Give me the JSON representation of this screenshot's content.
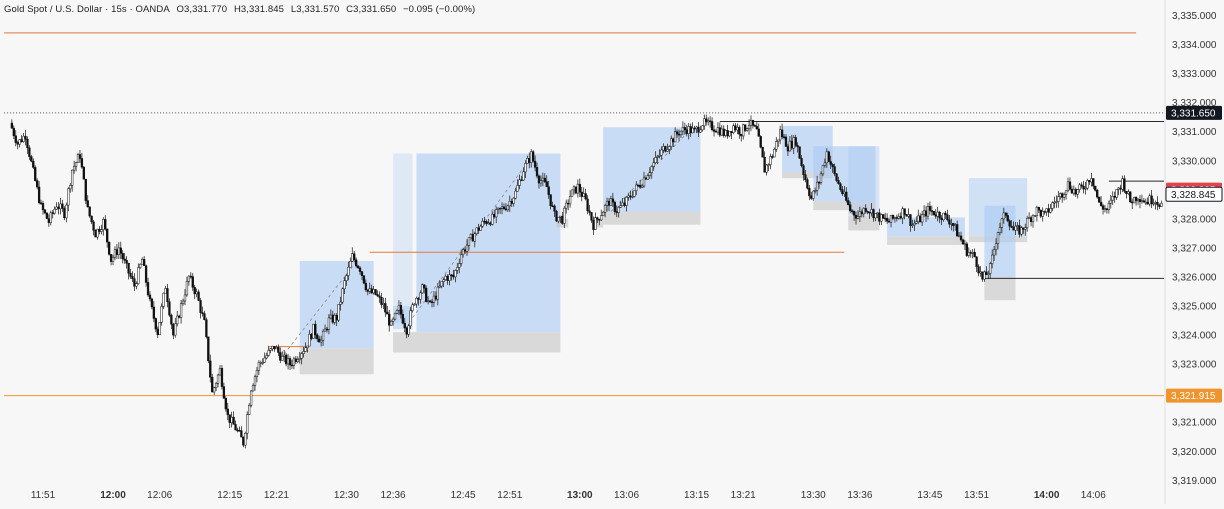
{
  "header": {
    "symbol": "Gold Spot / U.S. Dollar · 15s · OANDA",
    "open": "O3,331.770",
    "high": "H3,331.845",
    "low": "L3,331.570",
    "close": "C3,331.650",
    "change": "−0.095 (−0.00%)"
  },
  "chart_data": {
    "type": "candlestick",
    "title": "Gold Spot / U.S. Dollar · 15s · OANDA",
    "ylim": [
      3318.7,
      3335.3
    ],
    "grid": false,
    "y_ticks": [
      "3,335.000",
      "3,334.000",
      "3,333.000",
      "3,332.000",
      "3,331.000",
      "3,330.000",
      "3,329.000",
      "3,328.000",
      "3,327.000",
      "3,326.000",
      "3,325.000",
      "3,324.000",
      "3,323.000",
      "3,322.000",
      "3,321.000",
      "3,320.000",
      "3,319.000"
    ],
    "y_tick_values": [
      3335,
      3334,
      3333,
      3332,
      3331,
      3330,
      3329,
      3328,
      3327,
      3326,
      3325,
      3324,
      3323,
      3322,
      3321,
      3320,
      3319
    ],
    "x_ticks": [
      {
        "label": "11:51",
        "t": 0,
        "bold": false
      },
      {
        "label": "12:00",
        "t": 9,
        "bold": true
      },
      {
        "label": "12:06",
        "t": 15,
        "bold": false
      },
      {
        "label": "12:15",
        "t": 24,
        "bold": false
      },
      {
        "label": "12:21",
        "t": 30,
        "bold": false
      },
      {
        "label": "12:30",
        "t": 39,
        "bold": false
      },
      {
        "label": "12:36",
        "t": 45,
        "bold": false
      },
      {
        "label": "12:45",
        "t": 54,
        "bold": false
      },
      {
        "label": "12:51",
        "t": 60,
        "bold": false
      },
      {
        "label": "13:00",
        "t": 69,
        "bold": true
      },
      {
        "label": "13:06",
        "t": 75,
        "bold": false
      },
      {
        "label": "13:15",
        "t": 84,
        "bold": false
      },
      {
        "label": "13:21",
        "t": 90,
        "bold": false
      },
      {
        "label": "13:30",
        "t": 99,
        "bold": false
      },
      {
        "label": "13:36",
        "t": 105,
        "bold": false
      },
      {
        "label": "13:45",
        "t": 114,
        "bold": false
      },
      {
        "label": "13:51",
        "t": 120,
        "bold": false
      },
      {
        "label": "14:00",
        "t": 129,
        "bold": true
      },
      {
        "label": "14:06",
        "t": 135,
        "bold": false
      }
    ],
    "price_path": [
      [
        -4,
        3331.3
      ],
      [
        -3,
        3330.6
      ],
      [
        -2,
        3330.9
      ],
      [
        -1,
        3329.6
      ],
      [
        0,
        3328.4
      ],
      [
        1,
        3327.9
      ],
      [
        2,
        3328.5
      ],
      [
        3,
        3328.2
      ],
      [
        4,
        3329.7
      ],
      [
        5,
        3330.2
      ],
      [
        6,
        3328.3
      ],
      [
        7,
        3327.5
      ],
      [
        8,
        3327.9
      ],
      [
        9,
        3326.6
      ],
      [
        10,
        3327.0
      ],
      [
        11,
        3326.3
      ],
      [
        12,
        3325.7
      ],
      [
        13,
        3326.6
      ],
      [
        14,
        3325.1
      ],
      [
        15,
        3324.1
      ],
      [
        16,
        3325.7
      ],
      [
        17,
        3324.0
      ],
      [
        18,
        3325.0
      ],
      [
        19,
        3326.0
      ],
      [
        20,
        3325.4
      ],
      [
        21,
        3324.4
      ],
      [
        22,
        3322.0
      ],
      [
        23,
        3322.8
      ],
      [
        24,
        3321.2
      ],
      [
        25,
        3320.8
      ],
      [
        26,
        3320.3
      ],
      [
        27,
        3322.2
      ],
      [
        28,
        3323.0
      ],
      [
        29,
        3323.3
      ],
      [
        30,
        3323.6
      ],
      [
        31,
        3323.2
      ],
      [
        32,
        3323.0
      ],
      [
        33,
        3323.3
      ],
      [
        34,
        3323.6
      ],
      [
        35,
        3324.2
      ],
      [
        36,
        3323.8
      ],
      [
        37,
        3324.5
      ],
      [
        38,
        3324.6
      ],
      [
        39,
        3325.8
      ],
      [
        40,
        3326.7
      ],
      [
        41,
        3326.3
      ],
      [
        42,
        3325.5
      ],
      [
        43,
        3325.4
      ],
      [
        44,
        3325.0
      ],
      [
        45,
        3324.3
      ],
      [
        46,
        3324.9
      ],
      [
        47,
        3324.2
      ],
      [
        48,
        3325.2
      ],
      [
        49,
        3325.6
      ],
      [
        50,
        3325.0
      ],
      [
        51,
        3325.5
      ],
      [
        52,
        3326.0
      ],
      [
        53,
        3326.0
      ],
      [
        54,
        3326.8
      ],
      [
        55,
        3327.2
      ],
      [
        56,
        3327.6
      ],
      [
        57,
        3327.9
      ],
      [
        58,
        3328.0
      ],
      [
        59,
        3328.3
      ],
      [
        60,
        3328.5
      ],
      [
        61,
        3328.9
      ],
      [
        62,
        3329.7
      ],
      [
        63,
        3330.2
      ],
      [
        64,
        3329.4
      ],
      [
        65,
        3329.1
      ],
      [
        66,
        3328.1
      ],
      [
        67,
        3328.0
      ],
      [
        68,
        3328.8
      ],
      [
        69,
        3329.1
      ],
      [
        70,
        3328.6
      ],
      [
        71,
        3327.8
      ],
      [
        72,
        3328.2
      ],
      [
        73,
        3328.6
      ],
      [
        74,
        3328.3
      ],
      [
        75,
        3328.5
      ],
      [
        76,
        3328.9
      ],
      [
        77,
        3329.2
      ],
      [
        78,
        3329.6
      ],
      [
        79,
        3330.0
      ],
      [
        80,
        3330.4
      ],
      [
        81,
        3330.7
      ],
      [
        82,
        3331.0
      ],
      [
        83,
        3331.1
      ],
      [
        84,
        3331.0
      ],
      [
        85,
        3331.3
      ],
      [
        86,
        3331.2
      ],
      [
        87,
        3331.1
      ],
      [
        88,
        3330.9
      ],
      [
        89,
        3331.2
      ],
      [
        90,
        3331.0
      ],
      [
        91,
        3331.3
      ],
      [
        92,
        3331.0
      ],
      [
        93,
        3329.7
      ],
      [
        94,
        3330.2
      ],
      [
        95,
        3331.0
      ],
      [
        96,
        3330.5
      ],
      [
        97,
        3330.7
      ],
      [
        98,
        3329.6
      ],
      [
        99,
        3328.7
      ],
      [
        100,
        3329.3
      ],
      [
        101,
        3330.3
      ],
      [
        102,
        3329.5
      ],
      [
        103,
        3328.9
      ],
      [
        104,
        3328.3
      ],
      [
        105,
        3328.1
      ],
      [
        106,
        3328.4
      ],
      [
        107,
        3328.2
      ],
      [
        108,
        3328.0
      ],
      [
        109,
        3327.9
      ],
      [
        110,
        3328.1
      ],
      [
        111,
        3328.3
      ],
      [
        112,
        3327.8
      ],
      [
        113,
        3328.0
      ],
      [
        114,
        3328.3
      ],
      [
        115,
        3328.2
      ],
      [
        116,
        3328.1
      ],
      [
        117,
        3327.9
      ],
      [
        118,
        3327.4
      ],
      [
        119,
        3326.9
      ],
      [
        120,
        3326.7
      ],
      [
        121,
        3325.9
      ],
      [
        122,
        3326.3
      ],
      [
        123,
        3327.6
      ],
      [
        124,
        3328.2
      ],
      [
        125,
        3327.6
      ],
      [
        126,
        3327.6
      ],
      [
        127,
        3328.0
      ],
      [
        128,
        3328.3
      ],
      [
        129,
        3328.1
      ],
      [
        130,
        3328.5
      ],
      [
        131,
        3328.8
      ],
      [
        132,
        3329.2
      ],
      [
        133,
        3328.9
      ],
      [
        134,
        3329.1
      ],
      [
        135,
        3329.5
      ],
      [
        136,
        3328.5
      ],
      [
        137,
        3328.3
      ],
      [
        138,
        3328.8
      ],
      [
        139,
        3329.3
      ],
      [
        140,
        3328.6
      ],
      [
        141,
        3328.8
      ],
      [
        142,
        3328.6
      ],
      [
        143,
        3328.7
      ],
      [
        144,
        3328.5
      ]
    ],
    "horizontal_lines": [
      {
        "price": 3334.4,
        "t_start": -5,
        "t_end": 140.5,
        "color": "#e07b3c",
        "style": "solid"
      },
      {
        "price": 3331.65,
        "t_start": -5,
        "t_end": 145,
        "color": "#555555",
        "style": "dotted"
      },
      {
        "price": 3326.85,
        "t_start": 42,
        "t_end": 103,
        "color": "#e07b3c",
        "style": "solid"
      },
      {
        "price": 3323.6,
        "t_start": 29,
        "t_end": 34,
        "color": "#e07b3c",
        "style": "solid"
      },
      {
        "price": 3321.915,
        "t_start": -5,
        "t_end": 145,
        "color": "#f0952e",
        "style": "solid"
      },
      {
        "price": 3331.35,
        "t_start": 87,
        "t_end": 145,
        "color": "#2a2a2a",
        "style": "solid"
      },
      {
        "price": 3325.95,
        "t_start": 121,
        "t_end": 145,
        "color": "#2a2a2a",
        "style": "solid"
      },
      {
        "price": 3329.3,
        "t_start": 137,
        "t_end": 145,
        "color": "#2a2a2a",
        "style": "solid"
      }
    ],
    "zones": [
      {
        "t_start": 33,
        "t_end": 42.5,
        "top": 3326.55,
        "bottom": 3323.55,
        "color": "#aac9f3",
        "opacity": 0.6
      },
      {
        "t_start": 33,
        "t_end": 42.5,
        "top": 3323.55,
        "bottom": 3322.65,
        "color": "#c4c4c4",
        "opacity": 0.6
      },
      {
        "t_start": 45,
        "t_end": 47.5,
        "top": 3330.25,
        "bottom": 3324.4,
        "color": "#aac9f3",
        "opacity": 0.3
      },
      {
        "t_start": 45,
        "t_end": 47.5,
        "top": 3325.0,
        "bottom": 3324.2,
        "color": "#aac9f3",
        "opacity": 0.5
      },
      {
        "t_start": 48,
        "t_end": 66.5,
        "top": 3330.25,
        "bottom": 3324.1,
        "color": "#aac9f3",
        "opacity": 0.6
      },
      {
        "t_start": 45,
        "t_end": 66.5,
        "top": 3324.1,
        "bottom": 3323.4,
        "color": "#c4c4c4",
        "opacity": 0.6
      },
      {
        "t_start": 66,
        "t_end": 67.5,
        "top": 3328.0,
        "bottom": 3327.7,
        "color": "#c4c4c4",
        "opacity": 0.6
      },
      {
        "t_start": 72,
        "t_end": 84.5,
        "top": 3331.15,
        "bottom": 3328.25,
        "color": "#aac9f3",
        "opacity": 0.6
      },
      {
        "t_start": 72,
        "t_end": 84.5,
        "top": 3328.25,
        "bottom": 3327.8,
        "color": "#c4c4c4",
        "opacity": 0.6
      },
      {
        "t_start": 71,
        "t_end": 72,
        "top": 3328.0,
        "bottom": 3327.7,
        "color": "#c4c4c4",
        "opacity": 0.6
      },
      {
        "t_start": 95,
        "t_end": 101.5,
        "top": 3331.2,
        "bottom": 3329.6,
        "color": "#aac9f3",
        "opacity": 0.6
      },
      {
        "t_start": 95,
        "t_end": 101.5,
        "top": 3329.6,
        "bottom": 3329.4,
        "color": "#c4c4c4",
        "opacity": 0.6
      },
      {
        "t_start": 99,
        "t_end": 107,
        "top": 3330.5,
        "bottom": 3328.6,
        "color": "#aac9f3",
        "opacity": 0.6
      },
      {
        "t_start": 99,
        "t_end": 107,
        "top": 3328.6,
        "bottom": 3328.3,
        "color": "#c4c4c4",
        "opacity": 0.6
      },
      {
        "t_start": 103.5,
        "t_end": 107.5,
        "top": 3330.5,
        "bottom": 3328.1,
        "color": "#aac9f3",
        "opacity": 0.4
      },
      {
        "t_start": 103.5,
        "t_end": 107.5,
        "top": 3328.1,
        "bottom": 3327.6,
        "color": "#c4c4c4",
        "opacity": 0.6
      },
      {
        "t_start": 108.5,
        "t_end": 118.5,
        "top": 3328.05,
        "bottom": 3327.4,
        "color": "#aac9f3",
        "opacity": 0.6
      },
      {
        "t_start": 108.5,
        "t_end": 118.5,
        "top": 3327.4,
        "bottom": 3327.1,
        "color": "#c4c4c4",
        "opacity": 0.6
      },
      {
        "t_start": 119,
        "t_end": 126.5,
        "top": 3329.4,
        "bottom": 3327.4,
        "color": "#aac9f3",
        "opacity": 0.5
      },
      {
        "t_start": 119,
        "t_end": 126.5,
        "top": 3327.4,
        "bottom": 3327.2,
        "color": "#c4c4c4",
        "opacity": 0.6
      },
      {
        "t_start": 121,
        "t_end": 125,
        "top": 3328.45,
        "bottom": 3326.0,
        "color": "#aac9f3",
        "opacity": 0.6
      },
      {
        "t_start": 121,
        "t_end": 125,
        "top": 3326.0,
        "bottom": 3325.2,
        "color": "#c4c4c4",
        "opacity": 0.6
      }
    ],
    "dashed_trend_lines": [
      {
        "t1": 31,
        "p1": 3323.35,
        "t2": 40.5,
        "p2": 3326.6
      },
      {
        "t1": 47.5,
        "p1": 3324.6,
        "t2": 63,
        "p2": 3330.2
      },
      {
        "t1": 73,
        "p1": 3328.25,
        "t2": 83.5,
        "p2": 3331.15
      }
    ],
    "price_labels": [
      {
        "price": 3331.65,
        "text": "3,331.650",
        "bg": "#131722",
        "fg": "#ffffff"
      },
      {
        "price": 3329.005,
        "text": "3,329.005",
        "bg": "#e0444d",
        "fg": "#ffffff"
      },
      {
        "price": 3328.845,
        "text": "3,328.845",
        "bg": "#ffffff",
        "fg": "#131722",
        "border": "#131722"
      },
      {
        "price": 3321.915,
        "text": "3,321.915",
        "bg": "#f0952e",
        "fg": "#ffffff"
      }
    ]
  }
}
